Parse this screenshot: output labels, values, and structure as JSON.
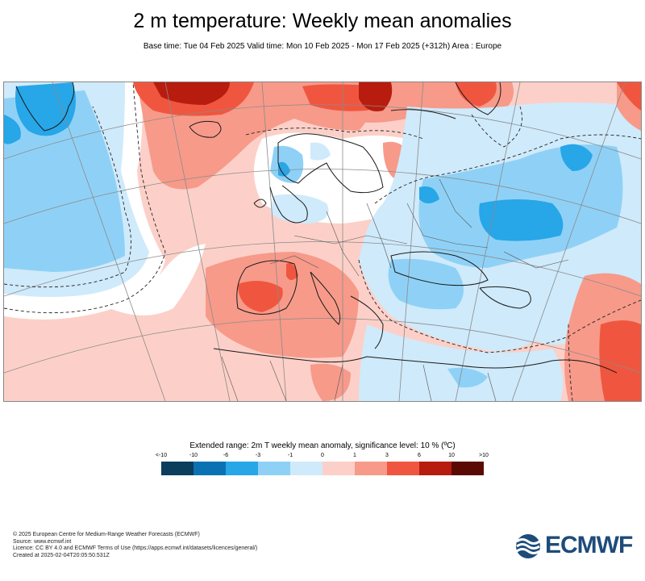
{
  "header": {
    "title": "2 m temperature: Weekly mean anomalies",
    "subtitle": "Base time: Tue 04 Feb 2025 Valid time: Mon 10 Feb 2025 - Mon 17 Feb 2025 (+312h) Area : Europe"
  },
  "legend": {
    "title": "Extended range: 2m T weekly mean anomaly, significance level: 10 % (ºC)",
    "ticks": [
      "<-10",
      "-10",
      "-6",
      "-3",
      "-1",
      "0",
      "1",
      "3",
      "6",
      "10",
      ">10"
    ],
    "colors": [
      "#0b3d5c",
      "#0a72b3",
      "#27a6e8",
      "#8fd1f6",
      "#cfeafb",
      "#fcd0c8",
      "#f79a8a",
      "#f0563f",
      "#b71c0e",
      "#5a0a03"
    ]
  },
  "map": {
    "area": "Europe",
    "colors": {
      "white": "#ffffff",
      "light_blue": "#cfeafb",
      "mid_blue": "#8fd1f6",
      "blue": "#27a6e8",
      "light_red": "#fcd0c8",
      "mid_red": "#f79a8a",
      "red": "#f0563f",
      "dark_red": "#b71c0e"
    }
  },
  "footer": {
    "line1": "© 2025 European Centre for Medium-Range Weather Forecasts (ECMWF)",
    "line2": "Source: www.ecmwf.int",
    "line3": "Licence: CC BY 4.0 and ECMWF Terms of Use (https://apps.ecmwf.int/datasets/licences/general/)",
    "line4": "Created at 2025-02-04T20:05:50.531Z"
  },
  "logo": {
    "text": "ECMWF",
    "color": "#1e4b7a"
  }
}
